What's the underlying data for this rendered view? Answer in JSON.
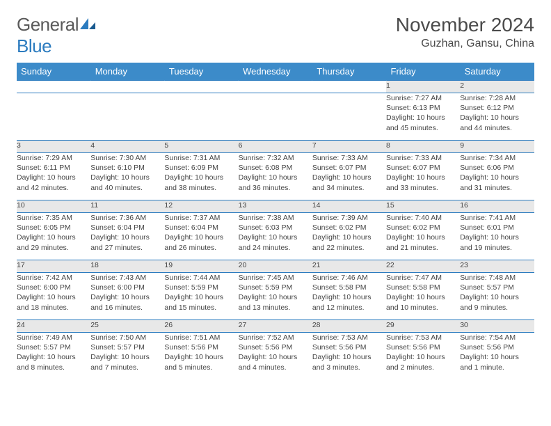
{
  "logo": {
    "text1": "General",
    "text2": "Blue"
  },
  "title": "November 2024",
  "location": "Guzhan, Gansu, China",
  "colors": {
    "header_bg": "#3c8bc9",
    "border": "#2b7bbf",
    "daynum_bg": "#e8e8e8",
    "text": "#444444",
    "logo_gray": "#5a5a5a",
    "logo_blue": "#2b7bbf"
  },
  "weekdays": [
    "Sunday",
    "Monday",
    "Tuesday",
    "Wednesday",
    "Thursday",
    "Friday",
    "Saturday"
  ],
  "weeks": [
    [
      {
        "n": "",
        "lines": [
          "",
          "",
          "",
          ""
        ]
      },
      {
        "n": "",
        "lines": [
          "",
          "",
          "",
          ""
        ]
      },
      {
        "n": "",
        "lines": [
          "",
          "",
          "",
          ""
        ]
      },
      {
        "n": "",
        "lines": [
          "",
          "",
          "",
          ""
        ]
      },
      {
        "n": "",
        "lines": [
          "",
          "",
          "",
          ""
        ]
      },
      {
        "n": "1",
        "lines": [
          "Sunrise: 7:27 AM",
          "Sunset: 6:13 PM",
          "Daylight: 10 hours",
          "and 45 minutes."
        ]
      },
      {
        "n": "2",
        "lines": [
          "Sunrise: 7:28 AM",
          "Sunset: 6:12 PM",
          "Daylight: 10 hours",
          "and 44 minutes."
        ]
      }
    ],
    [
      {
        "n": "3",
        "lines": [
          "Sunrise: 7:29 AM",
          "Sunset: 6:11 PM",
          "Daylight: 10 hours",
          "and 42 minutes."
        ]
      },
      {
        "n": "4",
        "lines": [
          "Sunrise: 7:30 AM",
          "Sunset: 6:10 PM",
          "Daylight: 10 hours",
          "and 40 minutes."
        ]
      },
      {
        "n": "5",
        "lines": [
          "Sunrise: 7:31 AM",
          "Sunset: 6:09 PM",
          "Daylight: 10 hours",
          "and 38 minutes."
        ]
      },
      {
        "n": "6",
        "lines": [
          "Sunrise: 7:32 AM",
          "Sunset: 6:08 PM",
          "Daylight: 10 hours",
          "and 36 minutes."
        ]
      },
      {
        "n": "7",
        "lines": [
          "Sunrise: 7:33 AM",
          "Sunset: 6:07 PM",
          "Daylight: 10 hours",
          "and 34 minutes."
        ]
      },
      {
        "n": "8",
        "lines": [
          "Sunrise: 7:33 AM",
          "Sunset: 6:07 PM",
          "Daylight: 10 hours",
          "and 33 minutes."
        ]
      },
      {
        "n": "9",
        "lines": [
          "Sunrise: 7:34 AM",
          "Sunset: 6:06 PM",
          "Daylight: 10 hours",
          "and 31 minutes."
        ]
      }
    ],
    [
      {
        "n": "10",
        "lines": [
          "Sunrise: 7:35 AM",
          "Sunset: 6:05 PM",
          "Daylight: 10 hours",
          "and 29 minutes."
        ]
      },
      {
        "n": "11",
        "lines": [
          "Sunrise: 7:36 AM",
          "Sunset: 6:04 PM",
          "Daylight: 10 hours",
          "and 27 minutes."
        ]
      },
      {
        "n": "12",
        "lines": [
          "Sunrise: 7:37 AM",
          "Sunset: 6:04 PM",
          "Daylight: 10 hours",
          "and 26 minutes."
        ]
      },
      {
        "n": "13",
        "lines": [
          "Sunrise: 7:38 AM",
          "Sunset: 6:03 PM",
          "Daylight: 10 hours",
          "and 24 minutes."
        ]
      },
      {
        "n": "14",
        "lines": [
          "Sunrise: 7:39 AM",
          "Sunset: 6:02 PM",
          "Daylight: 10 hours",
          "and 22 minutes."
        ]
      },
      {
        "n": "15",
        "lines": [
          "Sunrise: 7:40 AM",
          "Sunset: 6:02 PM",
          "Daylight: 10 hours",
          "and 21 minutes."
        ]
      },
      {
        "n": "16",
        "lines": [
          "Sunrise: 7:41 AM",
          "Sunset: 6:01 PM",
          "Daylight: 10 hours",
          "and 19 minutes."
        ]
      }
    ],
    [
      {
        "n": "17",
        "lines": [
          "Sunrise: 7:42 AM",
          "Sunset: 6:00 PM",
          "Daylight: 10 hours",
          "and 18 minutes."
        ]
      },
      {
        "n": "18",
        "lines": [
          "Sunrise: 7:43 AM",
          "Sunset: 6:00 PM",
          "Daylight: 10 hours",
          "and 16 minutes."
        ]
      },
      {
        "n": "19",
        "lines": [
          "Sunrise: 7:44 AM",
          "Sunset: 5:59 PM",
          "Daylight: 10 hours",
          "and 15 minutes."
        ]
      },
      {
        "n": "20",
        "lines": [
          "Sunrise: 7:45 AM",
          "Sunset: 5:59 PM",
          "Daylight: 10 hours",
          "and 13 minutes."
        ]
      },
      {
        "n": "21",
        "lines": [
          "Sunrise: 7:46 AM",
          "Sunset: 5:58 PM",
          "Daylight: 10 hours",
          "and 12 minutes."
        ]
      },
      {
        "n": "22",
        "lines": [
          "Sunrise: 7:47 AM",
          "Sunset: 5:58 PM",
          "Daylight: 10 hours",
          "and 10 minutes."
        ]
      },
      {
        "n": "23",
        "lines": [
          "Sunrise: 7:48 AM",
          "Sunset: 5:57 PM",
          "Daylight: 10 hours",
          "and 9 minutes."
        ]
      }
    ],
    [
      {
        "n": "24",
        "lines": [
          "Sunrise: 7:49 AM",
          "Sunset: 5:57 PM",
          "Daylight: 10 hours",
          "and 8 minutes."
        ]
      },
      {
        "n": "25",
        "lines": [
          "Sunrise: 7:50 AM",
          "Sunset: 5:57 PM",
          "Daylight: 10 hours",
          "and 7 minutes."
        ]
      },
      {
        "n": "26",
        "lines": [
          "Sunrise: 7:51 AM",
          "Sunset: 5:56 PM",
          "Daylight: 10 hours",
          "and 5 minutes."
        ]
      },
      {
        "n": "27",
        "lines": [
          "Sunrise: 7:52 AM",
          "Sunset: 5:56 PM",
          "Daylight: 10 hours",
          "and 4 minutes."
        ]
      },
      {
        "n": "28",
        "lines": [
          "Sunrise: 7:53 AM",
          "Sunset: 5:56 PM",
          "Daylight: 10 hours",
          "and 3 minutes."
        ]
      },
      {
        "n": "29",
        "lines": [
          "Sunrise: 7:53 AM",
          "Sunset: 5:56 PM",
          "Daylight: 10 hours",
          "and 2 minutes."
        ]
      },
      {
        "n": "30",
        "lines": [
          "Sunrise: 7:54 AM",
          "Sunset: 5:56 PM",
          "Daylight: 10 hours",
          "and 1 minute."
        ]
      }
    ]
  ]
}
